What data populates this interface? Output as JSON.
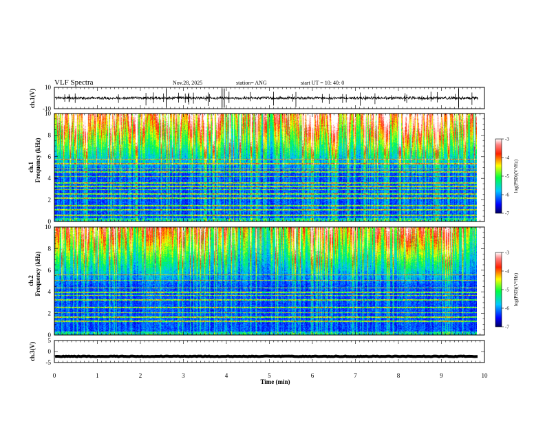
{
  "header": {
    "title": "VLF Spectra",
    "date": "Nov.28, 2025",
    "station": "station= ANG",
    "start": "start  UT =   10: 40: 0"
  },
  "chart_data": {
    "type": "heatmap",
    "xlabel": "Time  (min)",
    "xlim": [
      0,
      10
    ],
    "xticks": [
      "0",
      "1",
      "2",
      "3",
      "4",
      "5",
      "6",
      "7",
      "8",
      "9",
      "10"
    ],
    "panels": [
      {
        "id": "ch1-waveform",
        "type": "line",
        "ylabel": "ch.1(V)",
        "ylim": [
          -10,
          10
        ],
        "yticks": [
          "10",
          "-10"
        ],
        "baseline": 0,
        "noise_amplitude": 1.2,
        "data_end_min": 9.85
      },
      {
        "id": "ch1-spectrogram",
        "type": "heatmap",
        "ylabel_line1": "ch.1",
        "ylabel_line2": "Frequency  (kHz)",
        "ylim": [
          0,
          10
        ],
        "yticks": [
          "0",
          "2",
          "4",
          "6",
          "8",
          "10"
        ],
        "data_end_min": 9.85,
        "horizontal_lines_khz": [
          0.6,
          1.1,
          1.5,
          2.2,
          2.6,
          3.0,
          3.3,
          3.6,
          4.2,
          4.6,
          4.9,
          5.4,
          5.8
        ],
        "colorbar": {
          "label": "log(PSD)(V²/Hz)",
          "ticks": [
            "-3",
            "-4",
            "-5",
            "-6",
            "-7"
          ],
          "range": [
            -7,
            -3
          ]
        }
      },
      {
        "id": "ch2-spectrogram",
        "type": "heatmap",
        "ylabel_line1": "ch.2",
        "ylabel_line2": "Frequency  (kHz)",
        "ylim": [
          0,
          10
        ],
        "yticks": [
          "0",
          "2",
          "4",
          "6",
          "8",
          "10"
        ],
        "data_end_min": 9.85,
        "horizontal_lines_khz": [
          1.3,
          1.7,
          2.1,
          2.6,
          3.3,
          3.7,
          4.0,
          4.4,
          5.1,
          5.6
        ],
        "colorbar": {
          "label": "log(PSD)(V²/Hz)",
          "ticks": [
            "-3",
            "-4",
            "-5",
            "-6",
            "-7"
          ],
          "range": [
            -7,
            -3
          ]
        }
      },
      {
        "id": "ch3-waveform",
        "type": "line",
        "ylabel": "ch.3(V)",
        "ylim": [
          -5,
          5
        ],
        "yticks": [
          "5",
          "0",
          "-5"
        ],
        "baseline": -2.2,
        "noise_amplitude": 0.15,
        "data_end_min": 9.85
      }
    ]
  }
}
